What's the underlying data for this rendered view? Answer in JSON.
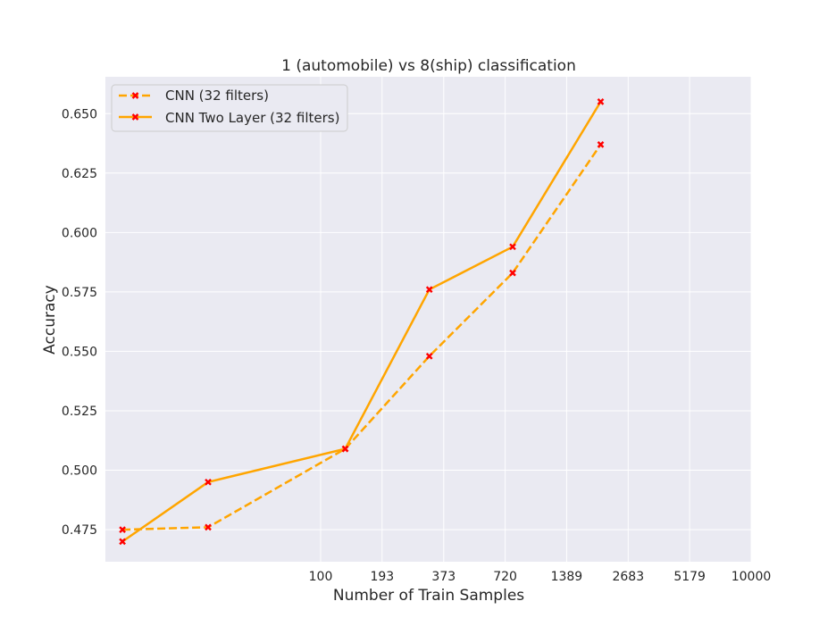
{
  "chart_data": {
    "type": "line",
    "title": "1 (automobile) vs 8(ship) classification",
    "xlabel": "Number of Train Samples",
    "ylabel": "Accuracy",
    "x_scale": "log",
    "xlim": [
      10,
      10000
    ],
    "ylim": [
      0.4615,
      0.6655
    ],
    "x_tick_labels": [
      "100",
      "193",
      "373",
      "720",
      "1389",
      "2683",
      "5179",
      "10000"
    ],
    "y_tick_labels": [
      "0.475",
      "0.500",
      "0.525",
      "0.550",
      "0.575",
      "0.600",
      "0.625",
      "0.650"
    ],
    "grid": true,
    "legend_position": "upper-left",
    "series": [
      {
        "name": "CNN (32 filters)",
        "style": "dashed",
        "color": "#ffa500",
        "marker_color": "#ff0000",
        "x": [
          12,
          30,
          130,
          320,
          780,
          2000
        ],
        "y": [
          0.475,
          0.476,
          0.509,
          0.548,
          0.583,
          0.637
        ]
      },
      {
        "name": "CNN Two Layer (32 filters)",
        "style": "solid",
        "color": "#ffa500",
        "marker_color": "#ff0000",
        "x": [
          12,
          30,
          130,
          320,
          780,
          2000
        ],
        "y": [
          0.47,
          0.495,
          0.509,
          0.576,
          0.594,
          0.655
        ]
      }
    ]
  }
}
